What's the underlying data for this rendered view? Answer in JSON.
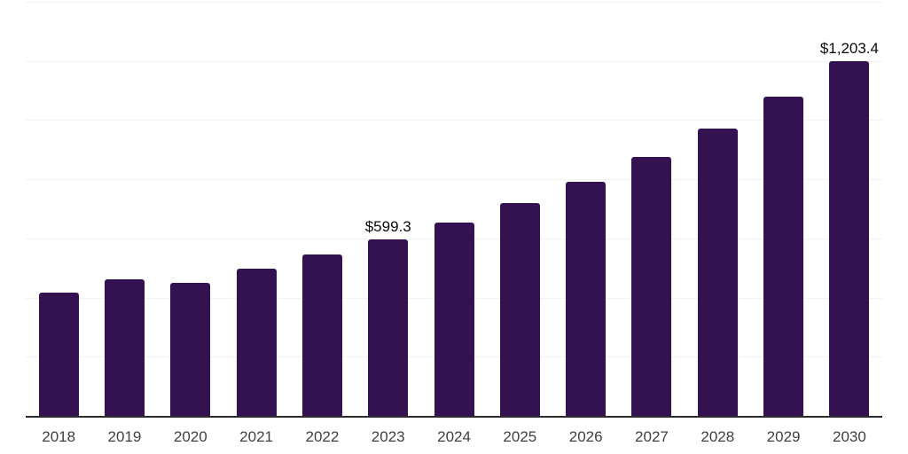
{
  "chart_data": {
    "type": "bar",
    "categories": [
      "2018",
      "2019",
      "2020",
      "2021",
      "2022",
      "2023",
      "2024",
      "2025",
      "2026",
      "2027",
      "2028",
      "2029",
      "2030"
    ],
    "values": [
      421,
      466,
      452,
      502,
      549,
      599.3,
      657,
      722,
      793,
      878,
      973,
      1081,
      1203.4
    ],
    "data_labels": {
      "2023": "$599.3",
      "2030": "$1,203.4"
    },
    "title": "",
    "xlabel": "",
    "ylabel": "",
    "ylim": [
      0,
      1400
    ],
    "grid_step": 200,
    "grid": true,
    "legend": false,
    "y_tick_labels_visible": false,
    "colors": {
      "bar": "#341150",
      "grid": "#f2f2f2",
      "axis": "#2b2b2b",
      "x_label": "#404040",
      "data_label": "#0a0a0a",
      "background": "#ffffff"
    }
  }
}
